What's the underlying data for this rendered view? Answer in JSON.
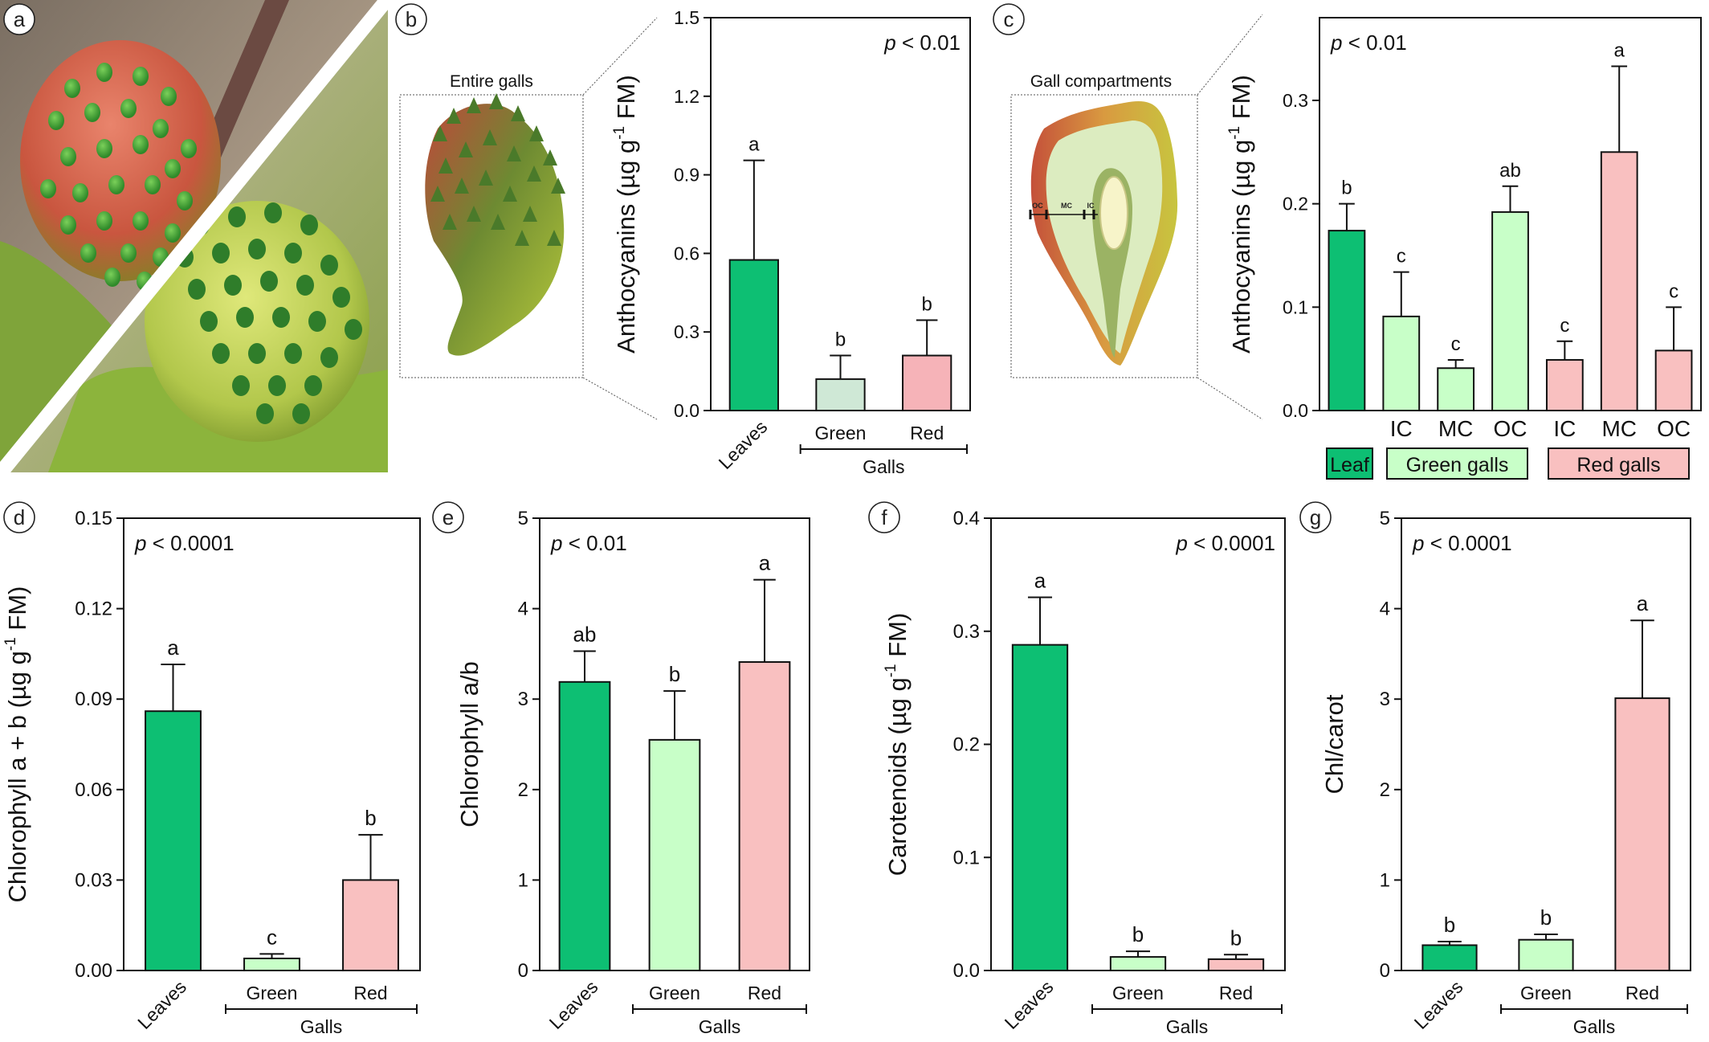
{
  "colors": {
    "leaf": "#0dbf73",
    "green_gall": "#c8ffc8",
    "green_gall_b": "#cfe8d6",
    "red_gall": "#f9c0c0",
    "red_gall_b": "#f6b3b8",
    "leaf_box": "#0dbf73",
    "green_box": "#c8ffc8",
    "red_box": "#f9c0c0"
  },
  "panel_labels": {
    "a": "a",
    "b": "b",
    "c": "c",
    "d": "d",
    "e": "e",
    "f": "f",
    "g": "g"
  },
  "panel_a": {
    "description_icon": "gall-photo"
  },
  "panel_b_drawing": {
    "title": "Entire galls"
  },
  "panel_c_drawing": {
    "title": "Gall compartments",
    "labels": [
      "OC",
      "MC",
      "IC"
    ]
  },
  "shared": {
    "galls_label": "Galls"
  },
  "chart_data": [
    {
      "id": "b",
      "type": "bar",
      "ylabel_main": "Anthocyanins (µg g",
      "ylabel_sup": "-1",
      "ylabel_end": " FM)",
      "pvalue_prefix": "p",
      "pvalue_rest": " < 0.01",
      "ylim": [
        0,
        1.5
      ],
      "yticks": [
        0.0,
        0.3,
        0.6,
        0.9,
        1.2,
        1.5
      ],
      "tick_decimals": 1,
      "categories": [
        "Leaves",
        "Green",
        "Red"
      ],
      "values": [
        0.575,
        0.12,
        0.21
      ],
      "errors": [
        0.38,
        0.09,
        0.135
      ],
      "letters": [
        "a",
        "b",
        "b"
      ],
      "group_label": "Galls"
    },
    {
      "id": "c",
      "type": "bar",
      "ylabel_main": "Anthocyanins (µg g",
      "ylabel_sup": "-1",
      "ylabel_end": " FM)",
      "pvalue_prefix": "p",
      "pvalue_rest": " < 0.01",
      "ylim": [
        0,
        0.38
      ],
      "yticks": [
        0.0,
        0.1,
        0.2,
        0.3
      ],
      "tick_decimals": 1,
      "categories": [
        "",
        "IC",
        "MC",
        "OC",
        "IC",
        "MC",
        "OC"
      ],
      "values": [
        0.174,
        0.091,
        0.041,
        0.192,
        0.049,
        0.25,
        0.058
      ],
      "errors": [
        0.026,
        0.043,
        0.008,
        0.025,
        0.018,
        0.083,
        0.042
      ],
      "letters": [
        "b",
        "c",
        "c",
        "ab",
        "c",
        "a",
        "c"
      ],
      "groups": [
        "Leaf",
        "Green galls",
        "Red galls"
      ]
    },
    {
      "id": "d",
      "type": "bar",
      "ylabel_main": "Chlorophyll a + b (µg g",
      "ylabel_sup": "-1",
      "ylabel_end": " FM)",
      "pvalue_prefix": "p",
      "pvalue_rest": " < 0.0001",
      "ylim": [
        0,
        0.15
      ],
      "yticks": [
        0.0,
        0.03,
        0.06,
        0.09,
        0.12,
        0.15
      ],
      "tick_decimals": 2,
      "categories": [
        "Leaves",
        "Green",
        "Red"
      ],
      "values": [
        0.086,
        0.004,
        0.03
      ],
      "errors": [
        0.0155,
        0.0015,
        0.015
      ],
      "letters": [
        "a",
        "c",
        "b"
      ],
      "group_label": "Galls"
    },
    {
      "id": "e",
      "type": "bar",
      "ylabel_main": "Chlorophyll a/b",
      "ylabel_sup": "",
      "ylabel_end": "",
      "pvalue_prefix": "p",
      "pvalue_rest": " < 0.01",
      "ylim": [
        0,
        5
      ],
      "yticks": [
        0,
        1,
        2,
        3,
        4,
        5
      ],
      "tick_decimals": 0,
      "categories": [
        "Leaves",
        "Green",
        "Red"
      ],
      "values": [
        3.19,
        2.55,
        3.41
      ],
      "errors": [
        0.34,
        0.54,
        0.91
      ],
      "letters": [
        "ab",
        "b",
        "a"
      ],
      "group_label": "Galls"
    },
    {
      "id": "f",
      "type": "bar",
      "ylabel_main": "Carotenoids (µg g",
      "ylabel_sup": "-1",
      "ylabel_end": " FM)",
      "pvalue_prefix": "p",
      "pvalue_rest": " < 0.0001",
      "ylim": [
        0,
        0.4
      ],
      "yticks": [
        0.0,
        0.1,
        0.2,
        0.3,
        0.4
      ],
      "tick_decimals": 1,
      "categories": [
        "Leaves",
        "Green",
        "Red"
      ],
      "values": [
        0.288,
        0.012,
        0.01
      ],
      "errors": [
        0.042,
        0.005,
        0.004
      ],
      "letters": [
        "a",
        "b",
        "b"
      ],
      "group_label": "Galls"
    },
    {
      "id": "g",
      "type": "bar",
      "ylabel_main": "Chl/carot",
      "ylabel_sup": "",
      "ylabel_end": "",
      "pvalue_prefix": "p",
      "pvalue_rest": " < 0.0001",
      "ylim": [
        0,
        5
      ],
      "yticks": [
        0,
        1,
        2,
        3,
        4,
        5
      ],
      "tick_decimals": 0,
      "categories": [
        "Leaves",
        "Green",
        "Red"
      ],
      "values": [
        0.28,
        0.34,
        3.01
      ],
      "errors": [
        0.04,
        0.06,
        0.86
      ],
      "letters": [
        "b",
        "b",
        "a"
      ],
      "group_label": "Galls"
    }
  ]
}
